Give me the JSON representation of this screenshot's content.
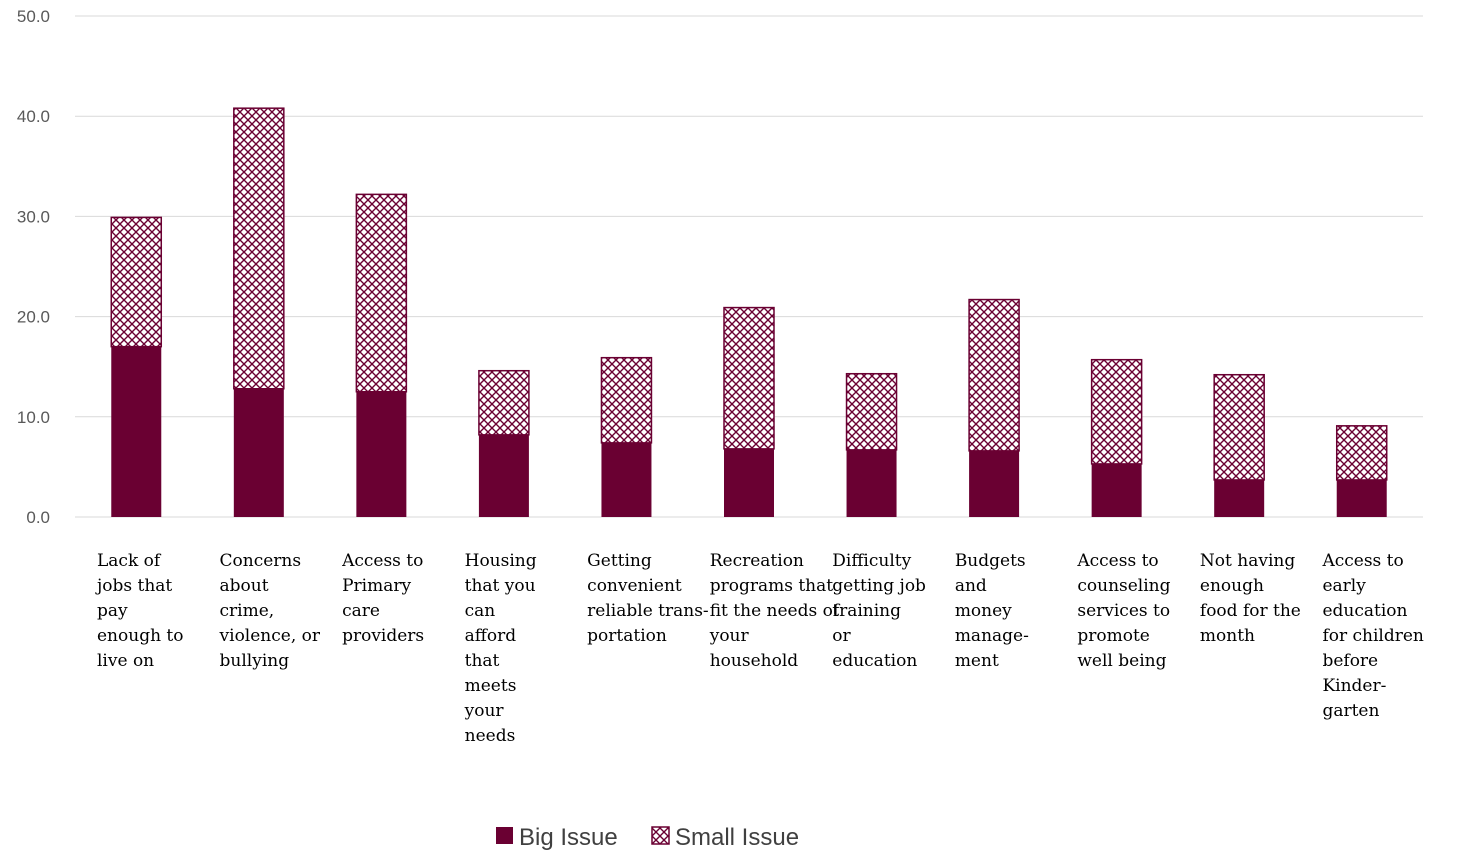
{
  "chart_data": {
    "type": "bar",
    "stacked": true,
    "title": "",
    "xlabel": "",
    "ylabel": "",
    "ylim": [
      0,
      50
    ],
    "yticks": [
      "0.0",
      "10.0",
      "20.0",
      "30.0",
      "40.0",
      "50.0"
    ],
    "grid": true,
    "legend_position": "bottom",
    "categories": [
      [
        "Lack of",
        "jobs that",
        "pay",
        "enough to",
        "live on"
      ],
      [
        "Concerns",
        "about",
        "crime,",
        "violence, or",
        "bullying"
      ],
      [
        "Access to",
        "Primary",
        "care",
        "providers"
      ],
      [
        "Housing",
        "that you",
        "can",
        "afford",
        "that",
        "meets",
        "your",
        "needs"
      ],
      [
        "Getting",
        "convenient",
        "reliable trans-",
        "portation"
      ],
      [
        "Recreation",
        "programs that",
        "fit the needs of",
        "your",
        "household"
      ],
      [
        "Difficulty",
        "getting job",
        "training",
        "or",
        "education"
      ],
      [
        "Budgets",
        "and",
        "money",
        "manage-",
        "ment"
      ],
      [
        "Access to",
        "counseling",
        "services to",
        "promote",
        "well being"
      ],
      [
        "Not having",
        "enough",
        "food for the",
        "month"
      ],
      [
        "Access to",
        "early",
        "education",
        "for children",
        "before",
        "Kinder-",
        "garten"
      ]
    ],
    "series": [
      {
        "name": "Big Issue",
        "color": "#6a0032",
        "pattern": "solid",
        "values": [
          17.0,
          12.8,
          12.5,
          8.2,
          7.4,
          6.8,
          6.7,
          6.6,
          5.3,
          3.7,
          3.7
        ]
      },
      {
        "name": "Small Issue",
        "color": "#6a0032",
        "pattern": "crosshatch",
        "values": [
          12.9,
          28.0,
          19.7,
          6.4,
          8.5,
          14.1,
          7.6,
          15.1,
          10.4,
          10.5,
          5.4
        ]
      }
    ]
  }
}
